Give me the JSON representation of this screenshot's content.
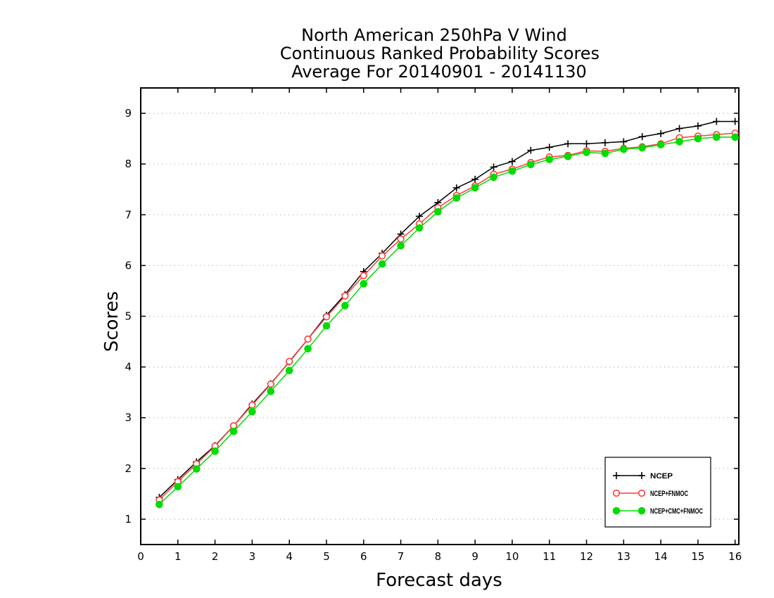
{
  "chart_data": {
    "type": "line",
    "title": [
      "North American 250hPa V Wind",
      "Continuous Ranked Probability Scores",
      "Average For 20140901 - 20141130"
    ],
    "xlabel": "Forecast days",
    "ylabel": "Scores",
    "xlim": [
      0,
      16.1
    ],
    "ylim": [
      0.5,
      9.5
    ],
    "xticks": [
      0,
      1,
      2,
      3,
      4,
      5,
      6,
      7,
      8,
      9,
      10,
      11,
      12,
      13,
      14,
      15,
      16
    ],
    "yticks": [
      1,
      2,
      3,
      4,
      5,
      6,
      7,
      8,
      9
    ],
    "grid": "horizontal dotted",
    "legend_position": "bottom-right",
    "x": [
      0.5,
      1,
      1.5,
      2,
      2.5,
      3,
      3.5,
      4,
      4.5,
      5,
      5.5,
      6,
      6.5,
      7,
      7.5,
      8,
      8.5,
      9,
      9.5,
      10,
      10.5,
      11,
      11.5,
      12,
      12.5,
      13,
      13.5,
      14,
      14.5,
      15,
      15.5,
      16
    ],
    "series": [
      {
        "name": "NCEP",
        "color": "#000000",
        "marker": "plus",
        "values": [
          1.43,
          1.78,
          2.13,
          2.45,
          2.84,
          3.27,
          3.67,
          4.1,
          4.55,
          5.02,
          5.43,
          5.88,
          6.24,
          6.62,
          6.97,
          7.24,
          7.53,
          7.7,
          7.94,
          8.05,
          8.27,
          8.33,
          8.4,
          8.4,
          8.42,
          8.44,
          8.54,
          8.6,
          8.7,
          8.75,
          8.84,
          8.84
        ]
      },
      {
        "name": "NCEP+FNMOC",
        "color": "#ff3b3b",
        "marker": "open-circle",
        "values": [
          1.38,
          1.74,
          2.09,
          2.44,
          2.84,
          3.25,
          3.66,
          4.11,
          4.55,
          4.99,
          5.4,
          5.8,
          6.19,
          6.52,
          6.82,
          7.14,
          7.38,
          7.57,
          7.8,
          7.9,
          8.03,
          8.14,
          8.17,
          8.26,
          8.25,
          8.31,
          8.34,
          8.4,
          8.52,
          8.55,
          8.58,
          8.61
        ]
      },
      {
        "name": "NCEP+CMC+FNMOC",
        "color": "#00dd00",
        "marker": "filled-circle",
        "values": [
          1.29,
          1.64,
          1.99,
          2.34,
          2.73,
          3.12,
          3.52,
          3.93,
          4.36,
          4.81,
          5.21,
          5.64,
          6.03,
          6.39,
          6.74,
          7.06,
          7.33,
          7.53,
          7.74,
          7.86,
          7.99,
          8.09,
          8.15,
          8.23,
          8.21,
          8.29,
          8.32,
          8.38,
          8.44,
          8.5,
          8.53,
          8.53
        ]
      }
    ]
  }
}
